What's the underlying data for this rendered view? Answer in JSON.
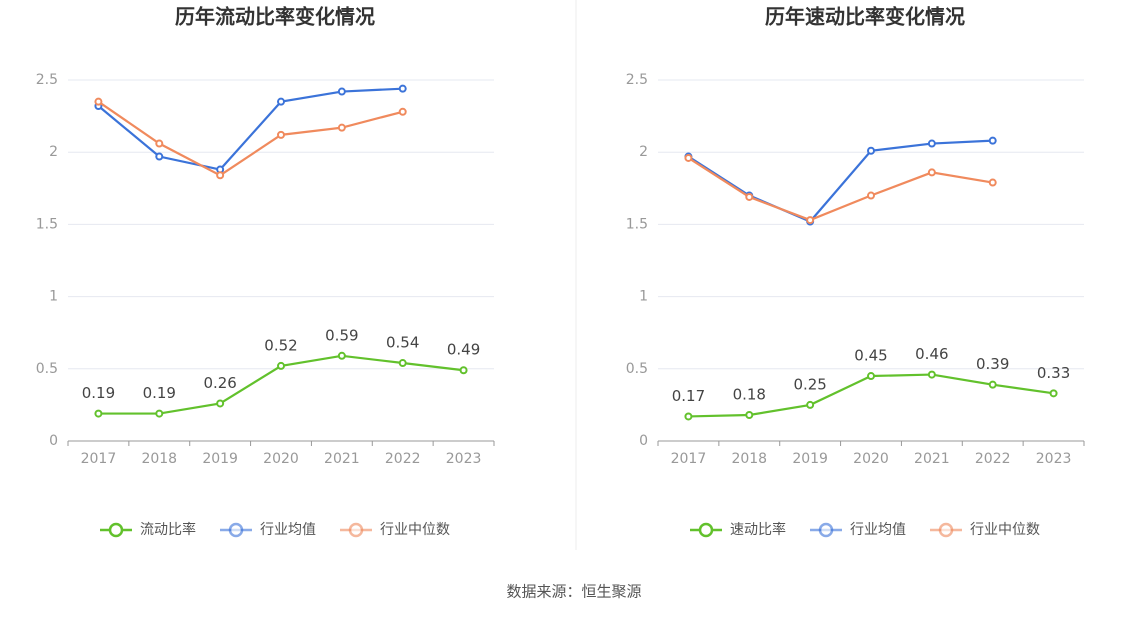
{
  "chart_data": [
    {
      "type": "line",
      "title": "历年流动比率变化情况",
      "categories": [
        "2017",
        "2018",
        "2019",
        "2020",
        "2021",
        "2022",
        "2023"
      ],
      "series": [
        {
          "name": "流动比率",
          "color": "#62c12c",
          "values": [
            0.19,
            0.19,
            0.26,
            0.52,
            0.59,
            0.54,
            0.49
          ]
        },
        {
          "name": "行业均值",
          "color": "#3b73d9",
          "values": [
            2.32,
            1.97,
            1.88,
            2.35,
            2.42,
            2.44,
            null
          ]
        },
        {
          "name": "行业中位数",
          "color": "#f08a5d",
          "values": [
            2.35,
            2.06,
            1.84,
            2.12,
            2.17,
            2.28,
            null
          ]
        }
      ],
      "ylim": [
        0,
        2.5
      ],
      "yticks": [
        0,
        0.5,
        1,
        1.5,
        2,
        2.5
      ],
      "grid": true,
      "legend": "bottom"
    },
    {
      "type": "line",
      "title": "历年速动比率变化情况",
      "categories": [
        "2017",
        "2018",
        "2019",
        "2020",
        "2021",
        "2022",
        "2023"
      ],
      "series": [
        {
          "name": "速动比率",
          "color": "#62c12c",
          "values": [
            0.17,
            0.18,
            0.25,
            0.45,
            0.46,
            0.39,
            0.33
          ]
        },
        {
          "name": "行业均值",
          "color": "#3b73d9",
          "values": [
            1.97,
            1.7,
            1.52,
            2.01,
            2.06,
            2.08,
            null
          ]
        },
        {
          "name": "行业中位数",
          "color": "#f08a5d",
          "values": [
            1.96,
            1.69,
            1.53,
            1.7,
            1.86,
            1.79,
            null
          ]
        }
      ],
      "ylim": [
        0,
        2.5
      ],
      "yticks": [
        0,
        0.5,
        1,
        1.5,
        2,
        2.5
      ],
      "grid": true,
      "legend": "bottom"
    }
  ],
  "source": "数据来源：恒生聚源"
}
